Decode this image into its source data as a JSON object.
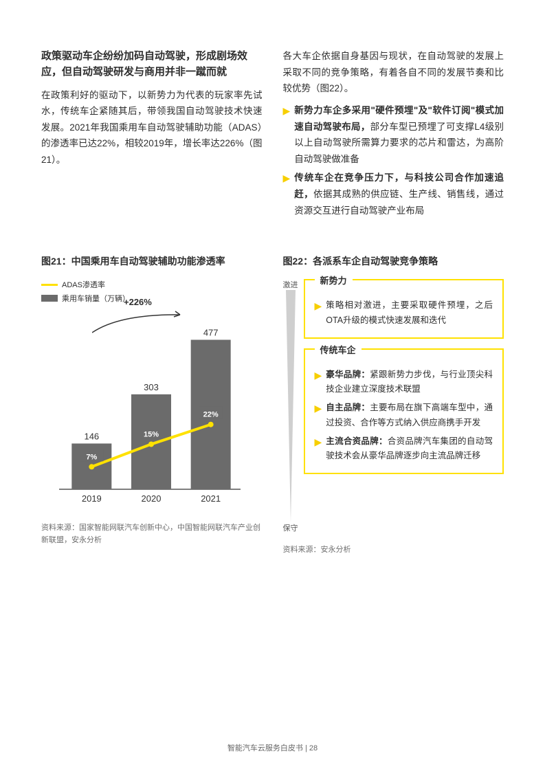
{
  "left": {
    "heading": "政策驱动车企纷纷加码自动驾驶，形成剧场效应，但自动驾驶研发与商用并非一蹴而就",
    "body": "在政策利好的驱动下，以新势力为代表的玩家率先试水，传统车企紧随其后，带领我国自动驾驶技术快速发展。2021年我国乘用车自动驾驶辅助功能（ADAS）的渗透率已达22%，相较2019年，增长率达226%（图21）。"
  },
  "right": {
    "body": "各大车企依据自身基因与现状，在自动驾驶的发展上采取不同的竞争策略，有着各自不同的发展节奏和比较优势（图22）。",
    "bullets": [
      {
        "bold": "新势力车企多采用\"硬件预埋\"及\"软件订阅\"模式加速自动驾驶布局，",
        "rest": "部分车型已预埋了可支撑L4级别以上自动驾驶所需算力要求的芯片和雷达，为高阶自动驾驶做准备"
      },
      {
        "bold": "传统车企在竞争压力下，与科技公司合作加速追赶，",
        "rest": "依据其成熟的供应链、生产线、销售线，通过资源交互进行自动驾驶产业布局"
      }
    ]
  },
  "fig21": {
    "title": "图21：中国乘用车自动驾驶辅助功能渗透率",
    "legend_line": "ADAS渗透率",
    "legend_bar": "乘用车销量（万辆）",
    "growth_label": "+226%",
    "colors": {
      "bar": "#6b6b6b",
      "line": "#ffe100",
      "axis": "#333333",
      "growth_arrow": "#333333"
    },
    "categories": [
      "2019",
      "2020",
      "2021"
    ],
    "bar_values": [
      146,
      303,
      477
    ],
    "line_labels": [
      "7%",
      "15%",
      "22%"
    ],
    "source": "资料来源：国家智能网联汽车创新中心，中国智能网联汽车产业创新联盟，安永分析"
  },
  "fig22": {
    "title": "图22：各派系车企自动驾驶竞争策略",
    "axis_top": "激进",
    "axis_bottom": "保守",
    "wedge_color": "#cfcfcf",
    "box1": {
      "title": "新势力",
      "border": "#ffe100",
      "bullets": [
        {
          "text": "策略相对激进，主要采取硬件预埋，之后OTA升级的模式快速发展和迭代"
        }
      ]
    },
    "box2": {
      "title": "传统车企",
      "border": "#ffe100",
      "bullets": [
        {
          "bold": "豪华品牌：",
          "text": "紧跟新势力步伐，与行业顶尖科技企业建立深度技术联盟"
        },
        {
          "bold": "自主品牌：",
          "text": "主要布局在旗下高端车型中，通过投资、合作等方式纳入供应商携手开发"
        },
        {
          "bold": "主流合资品牌：",
          "text": "合资品牌汽车集团的自动驾驶技术会从豪华品牌逐步向主流品牌迁移"
        }
      ]
    },
    "source": "资料来源：安永分析"
  },
  "footer": "智能汽车云服务白皮书 | 28"
}
